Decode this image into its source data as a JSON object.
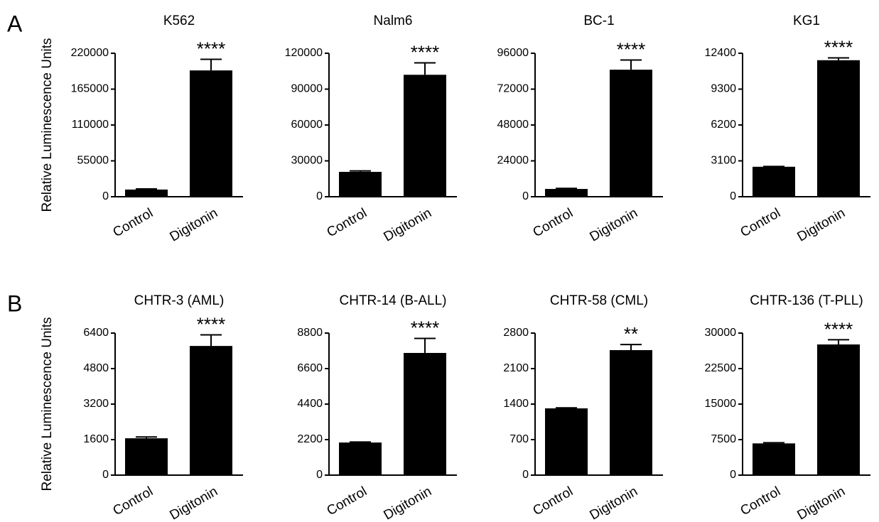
{
  "chart_data": [
    {
      "type": "bar",
      "panel": "A",
      "ylabel": "Relative Luminescence Units",
      "title": "K562",
      "categories": [
        "Control",
        "Digitonin"
      ],
      "values": [
        11000,
        193700
      ],
      "errors": [
        1000,
        17000
      ],
      "annotations": [
        null,
        "****"
      ],
      "color": "#000000",
      "ylim": [
        0,
        220000
      ],
      "yticks": [
        0,
        55000,
        110000,
        165000,
        220000
      ]
    },
    {
      "type": "bar",
      "title": "Nalm6",
      "categories": [
        "Control",
        "Digitonin"
      ],
      "values": [
        20800,
        102000
      ],
      "errors": [
        800,
        10000
      ],
      "annotations": [
        null,
        "****"
      ],
      "color": "#000000",
      "ylim": [
        0,
        120000
      ],
      "yticks": [
        0,
        30000,
        60000,
        90000,
        120000
      ]
    },
    {
      "type": "bar",
      "title": "BC-1",
      "categories": [
        "Control",
        "Digitonin"
      ],
      "values": [
        5200,
        85000
      ],
      "errors": [
        400,
        6500
      ],
      "annotations": [
        null,
        "****"
      ],
      "color": "#000000",
      "ylim": [
        0,
        96000
      ],
      "yticks": [
        0,
        24000,
        48000,
        72000,
        96000
      ]
    },
    {
      "type": "bar",
      "title": "KG1",
      "categories": [
        "Control",
        "Digitonin"
      ],
      "values": [
        2590,
        11800
      ],
      "errors": [
        30,
        200
      ],
      "annotations": [
        null,
        "****"
      ],
      "color": "#000000",
      "ylim": [
        0,
        12400
      ],
      "yticks": [
        0,
        3100,
        6200,
        9300,
        12400
      ]
    },
    {
      "type": "bar",
      "panel": "B",
      "ylabel": "Relative Luminescence Units",
      "title": "CHTR-3 (AML)",
      "categories": [
        "Control",
        "Digitonin"
      ],
      "values": [
        1660,
        5820
      ],
      "errors": [
        60,
        500
      ],
      "annotations": [
        null,
        "****"
      ],
      "color": "#000000",
      "ylim": [
        0,
        6400
      ],
      "yticks": [
        0,
        1600,
        3200,
        4800,
        6400
      ]
    },
    {
      "type": "bar",
      "title": "CHTR-14 (B-ALL)",
      "categories": [
        "Control",
        "Digitonin"
      ],
      "values": [
        2020,
        7570
      ],
      "errors": [
        30,
        900
      ],
      "annotations": [
        null,
        "****"
      ],
      "color": "#000000",
      "ylim": [
        0,
        8800
      ],
      "yticks": [
        0,
        2200,
        4400,
        6600,
        8800
      ]
    },
    {
      "type": "bar",
      "title": "CHTR-58 (CML)",
      "categories": [
        "Control",
        "Digitonin"
      ],
      "values": [
        1316,
        2464
      ],
      "errors": [
        10,
        110
      ],
      "annotations": [
        null,
        "**"
      ],
      "color": "#000000",
      "ylim": [
        0,
        2800
      ],
      "yticks": [
        0,
        700,
        1400,
        2100,
        2800
      ]
    },
    {
      "type": "bar",
      "title": "CHTR-136 (T-PLL)",
      "categories": [
        "Control",
        "Digitonin"
      ],
      "values": [
        6700,
        27600
      ],
      "errors": [
        150,
        1000
      ],
      "annotations": [
        null,
        "****"
      ],
      "color": "#000000",
      "ylim": [
        0,
        30000
      ],
      "yticks": [
        0,
        7500,
        15000,
        22500,
        30000
      ]
    }
  ]
}
